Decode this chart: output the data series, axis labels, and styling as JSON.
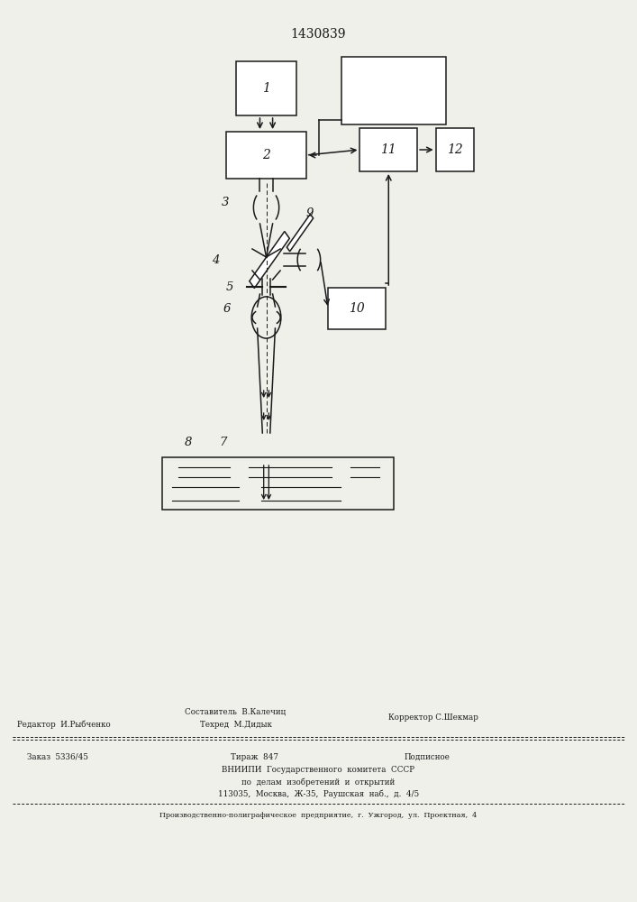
{
  "title": "1430839",
  "bg_color": "#f0f0eb",
  "line_color": "#1a1a1a",
  "footer_line1": "Составитель  В.Калечиц",
  "footer_editor": "Редактор  И.Рыбченко",
  "footer_techred": "Техред  М.Дидык",
  "footer_corrector": "Корректор С.Шекмар",
  "footer_zakaz": "Заказ  5336/45",
  "footer_tirazh": "Тираж  847",
  "footer_podpisnoe": "Подписное",
  "footer_vnipi": "ВНИИПИ  Государственного  комитета  СССР",
  "footer_dela": "по  делам  изобретений  и  открытий",
  "footer_addr": "113035,  Москва,  Ж-35,  Раушская  наб.,  д.  4/5",
  "footer_prod": "Производственно-полиграфическое  предприятие,  г.  Ужгород,  ул.  Проектная,  4"
}
